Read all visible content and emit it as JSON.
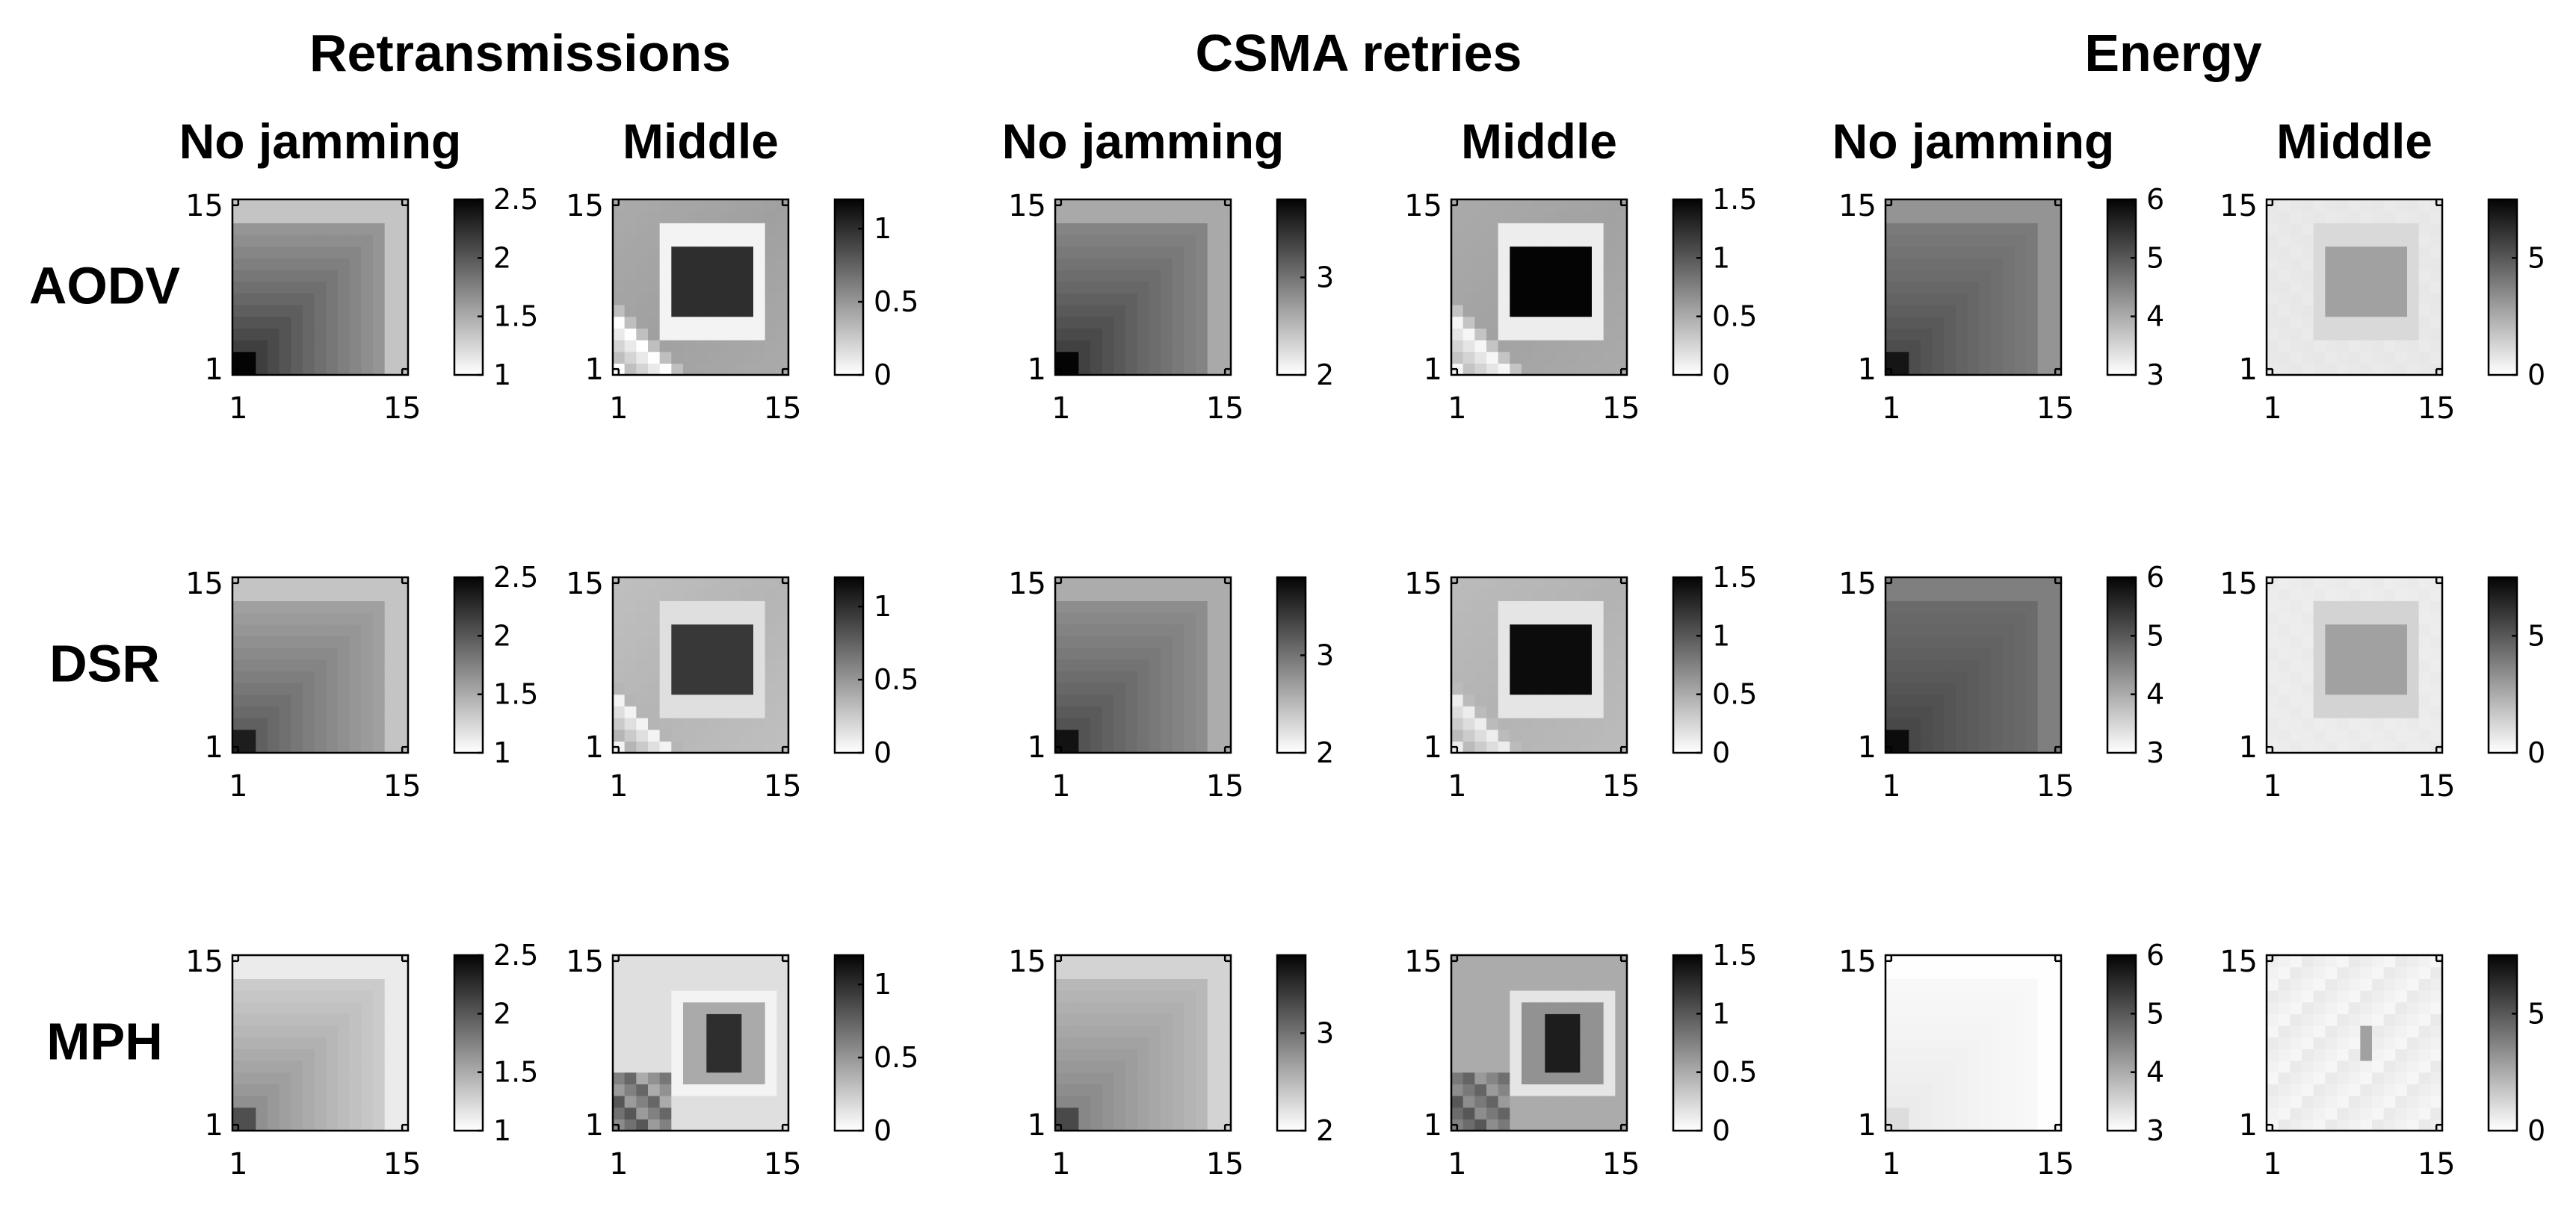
{
  "figure": {
    "group_titles": [
      "Retransmissions",
      "CSMA retries",
      "Energy"
    ],
    "column_titles": [
      "No jamming",
      "Middle",
      "No jamming",
      "Middle",
      "No jamming",
      "Middle"
    ],
    "row_labels": [
      "AODV",
      "DSR",
      "MPH"
    ]
  },
  "chart_data": {
    "type": "heatmap",
    "grid_size": 15,
    "axes": {
      "x_ticks": [
        "1",
        "15"
      ],
      "y_ticks": [
        "1",
        "15"
      ]
    },
    "colormap": "gray, reversed (low = white, high = black)",
    "metrics": [
      {
        "group": "Retransmissions",
        "condition": "No jamming",
        "clim": [
          1,
          2.5
        ],
        "cbar_ticks": [
          "1",
          "1.5",
          "2",
          "2.5"
        ],
        "colorbar_visible": true
      },
      {
        "group": "Retransmissions",
        "condition": "Middle",
        "clim": [
          0,
          1.2
        ],
        "cbar_ticks": [
          "0",
          "0.5",
          "1"
        ],
        "colorbar_visible": true
      },
      {
        "group": "CSMA retries",
        "condition": "No jamming",
        "clim": [
          2,
          3.8
        ],
        "cbar_ticks": [
          "2",
          "3"
        ],
        "colorbar_visible": true
      },
      {
        "group": "CSMA retries",
        "condition": "Middle",
        "clim": [
          0,
          1.5
        ],
        "cbar_ticks": [
          "0",
          "0.5",
          "1",
          "1.5"
        ],
        "colorbar_visible": true
      },
      {
        "group": "Energy",
        "condition": "No jamming",
        "clim": [
          3,
          6
        ],
        "cbar_ticks": [
          "3",
          "4",
          "5",
          "6"
        ],
        "colorbar_visible": true
      },
      {
        "group": "Energy",
        "condition": "Middle",
        "clim": [
          0,
          7.5
        ],
        "cbar_ticks": [
          "0",
          "5"
        ],
        "colorbar_visible": true
      }
    ],
    "panels": [
      {
        "row": "AODV",
        "metric": 0,
        "pattern": "nojam",
        "lo": 1.55,
        "hi": 2.35,
        "corner": 2.55,
        "sharp": 0.7
      },
      {
        "row": "AODV",
        "metric": 1,
        "pattern": "middle",
        "outer": 0.45,
        "ring": 0.05,
        "center": 1.0,
        "diag": 0.0
      },
      {
        "row": "AODV",
        "metric": 2,
        "pattern": "nojam",
        "lo": 2.8,
        "hi": 3.55,
        "corner": 3.8,
        "sharp": 0.7
      },
      {
        "row": "AODV",
        "metric": 3,
        "pattern": "middle",
        "outer": 0.55,
        "ring": 0.1,
        "center": 1.5,
        "diag": 0.05
      },
      {
        "row": "AODV",
        "metric": 4,
        "pattern": "nojam",
        "lo": 4.5,
        "hi": 5.4,
        "corner": 5.8,
        "sharp": 0.6
      },
      {
        "row": "AODV",
        "metric": 5,
        "pattern": "energyMid",
        "outer": 0.6,
        "ring": 1.1,
        "center": 2.8,
        "diag": 0.6
      },
      {
        "row": "DSR",
        "metric": 0,
        "pattern": "nojam",
        "lo": 1.5,
        "hi": 2.1,
        "corner": 2.35,
        "sharp": 0.7
      },
      {
        "row": "DSR",
        "metric": 1,
        "pattern": "middle",
        "outer": 0.35,
        "ring": 0.15,
        "center": 0.95,
        "diag": 0.05
      },
      {
        "row": "DSR",
        "metric": 2,
        "pattern": "nojam",
        "lo": 2.75,
        "hi": 3.4,
        "corner": 3.7,
        "sharp": 0.7
      },
      {
        "row": "DSR",
        "metric": 3,
        "pattern": "middle",
        "outer": 0.45,
        "ring": 0.15,
        "center": 1.45,
        "diag": 0.1
      },
      {
        "row": "DSR",
        "metric": 4,
        "pattern": "nojam",
        "lo": 4.7,
        "hi": 5.4,
        "corner": 5.9,
        "sharp": 0.6
      },
      {
        "row": "DSR",
        "metric": 5,
        "pattern": "energyMid",
        "outer": 0.5,
        "ring": 1.3,
        "center": 2.8,
        "diag": 0.5
      },
      {
        "row": "MPH",
        "metric": 0,
        "pattern": "nojam",
        "lo": 1.25,
        "hi": 1.8,
        "corner": 2.05,
        "sharp": 0.7
      },
      {
        "row": "MPH",
        "metric": 1,
        "pattern": "mphMiddle",
        "outer": 0.15,
        "ring": 0.05,
        "center": 1.0,
        "diag": 0.55
      },
      {
        "row": "MPH",
        "metric": 2,
        "pattern": "nojam",
        "lo": 2.45,
        "hi": 3.0,
        "corner": 3.3,
        "sharp": 0.7
      },
      {
        "row": "MPH",
        "metric": 3,
        "pattern": "mphMiddle",
        "outer": 0.5,
        "ring": 0.15,
        "center": 1.35,
        "diag": 0.75
      },
      {
        "row": "MPH",
        "metric": 4,
        "pattern": "nojam",
        "lo": 3.05,
        "hi": 3.3,
        "corner": 3.4,
        "sharp": 0.6
      },
      {
        "row": "MPH",
        "metric": 5,
        "pattern": "energyMph",
        "outer": 0.25,
        "ring": 0.35,
        "center": 2.8,
        "diag": 0.3
      }
    ]
  }
}
